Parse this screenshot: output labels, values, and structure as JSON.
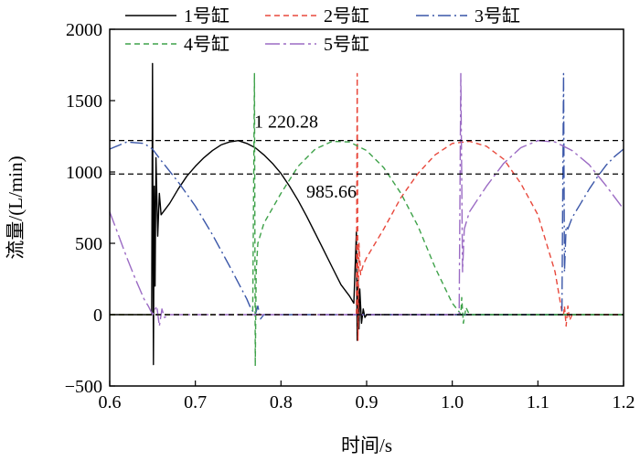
{
  "chart_data": {
    "type": "line",
    "xlabel": "时间/s",
    "ylabel": "流量/(L/min)",
    "xlim": [
      0.6,
      1.2
    ],
    "ylim": [
      -500,
      2000
    ],
    "xticks": [
      "0.6",
      "0.7",
      "0.8",
      "0.9",
      "1.0",
      "1.1",
      "1.2"
    ],
    "yticks": [
      "−500",
      "0",
      "500",
      "1000",
      "1500",
      "2000"
    ],
    "grid": false,
    "legend_position": "top, two rows",
    "series": [
      {
        "name": "1号缸",
        "color": "#000000",
        "dash": "solid",
        "x": [
          0.6,
          0.649,
          0.65,
          0.651,
          0.652,
          0.653,
          0.654,
          0.656,
          0.658,
          0.66,
          0.665,
          0.67,
          0.68,
          0.69,
          0.7,
          0.71,
          0.72,
          0.73,
          0.74,
          0.75,
          0.76,
          0.77,
          0.78,
          0.79,
          0.8,
          0.81,
          0.82,
          0.83,
          0.84,
          0.85,
          0.86,
          0.87,
          0.88,
          0.885,
          0.888,
          0.889,
          0.89,
          0.891,
          0.892,
          0.894,
          0.896,
          0.898,
          0.9,
          1.2
        ],
        "y": [
          0,
          0,
          1760,
          -350,
          900,
          200,
          1100,
          550,
          850,
          700,
          740,
          780,
          880,
          970,
          1040,
          1100,
          1150,
          1190,
          1210,
          1220,
          1200,
          1170,
          1120,
          1060,
          990,
          900,
          800,
          690,
          570,
          450,
          330,
          210,
          130,
          80,
          580,
          -180,
          240,
          -100,
          180,
          -60,
          40,
          -20,
          0,
          0
        ]
      },
      {
        "name": "2号缸",
        "color": "#e8483c",
        "dash": "6,4",
        "x": [
          0.6,
          0.888,
          0.889,
          0.89,
          0.891,
          0.893,
          0.896,
          0.9,
          0.92,
          0.94,
          0.96,
          0.98,
          1.0,
          1.02,
          1.04,
          1.06,
          1.08,
          1.1,
          1.12,
          1.128,
          1.13,
          1.131,
          1.133,
          1.135,
          1.137,
          1.14,
          1.2
        ],
        "y": [
          0,
          0,
          1690,
          -180,
          500,
          280,
          350,
          400,
          600,
          820,
          990,
          1120,
          1200,
          1215,
          1180,
          1090,
          920,
          700,
          300,
          20,
          0,
          60,
          -80,
          60,
          -40,
          0,
          0
        ]
      },
      {
        "name": "3号缸",
        "color": "#3a56a8",
        "dash": "14,4,2,4",
        "x": [
          0.6,
          0.62,
          0.64,
          0.65,
          0.66,
          0.68,
          0.7,
          0.72,
          0.74,
          0.76,
          0.765,
          0.77,
          0.773,
          0.776,
          0.78,
          0.9,
          1.125,
          1.128,
          1.13,
          1.131,
          1.133,
          1.135,
          1.14,
          1.15,
          1.16,
          1.17,
          1.18,
          1.19,
          1.2
        ],
        "y": [
          1160,
          1210,
          1200,
          1160,
          1080,
          930,
          760,
          560,
          340,
          110,
          40,
          0,
          60,
          -30,
          0,
          0,
          0,
          0,
          1690,
          300,
          620,
          600,
          680,
          780,
          880,
          970,
          1050,
          1110,
          1160
        ]
      },
      {
        "name": "4号缸",
        "color": "#3fa24a",
        "dash": "6,4",
        "x": [
          0.6,
          0.767,
          0.769,
          0.77,
          0.771,
          0.773,
          0.776,
          0.78,
          0.8,
          0.82,
          0.84,
          0.86,
          0.88,
          0.9,
          0.92,
          0.94,
          0.96,
          0.98,
          1.0,
          1.008,
          1.01,
          1.011,
          1.013,
          1.016,
          1.02,
          1.2
        ],
        "y": [
          0,
          0,
          1690,
          -360,
          300,
          500,
          560,
          640,
          850,
          1040,
          1160,
          1215,
          1210,
          1150,
          1030,
          850,
          620,
          330,
          80,
          20,
          0,
          120,
          -60,
          50,
          0,
          0
        ]
      },
      {
        "name": "5号缸",
        "color": "#9b6bc4",
        "dash": "16,4,3,4",
        "x": [
          0.6,
          0.61,
          0.62,
          0.63,
          0.64,
          0.645,
          0.65,
          0.655,
          0.658,
          0.661,
          0.664,
          0.67,
          1.005,
          1.008,
          1.01,
          1.012,
          1.014,
          1.02,
          1.04,
          1.06,
          1.08,
          1.1,
          1.12,
          1.14,
          1.16,
          1.18,
          1.2
        ],
        "y": [
          720,
          560,
          400,
          250,
          110,
          60,
          0,
          60,
          -80,
          40,
          -20,
          0,
          0,
          0,
          1690,
          300,
          600,
          720,
          900,
          1060,
          1170,
          1220,
          1210,
          1150,
          1050,
          900,
          740
        ]
      }
    ],
    "reference_lines": [
      {
        "y": 1220.28,
        "label": "1 220.28"
      },
      {
        "y": 985.66,
        "label": "985.66"
      },
      {
        "y": 0,
        "label": ""
      }
    ]
  }
}
